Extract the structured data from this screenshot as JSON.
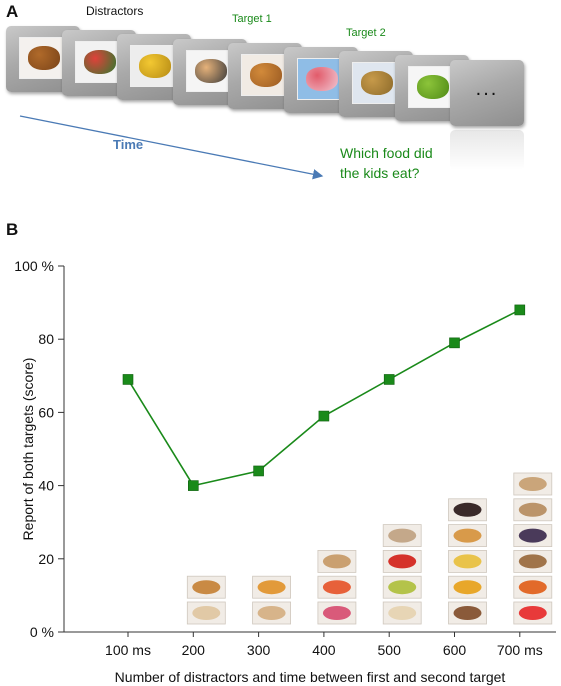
{
  "panel_a": {
    "label": "A",
    "distractors_label": "Distractors",
    "target1_label": "Target 1",
    "target2_label": "Target 2",
    "time_label": "Time",
    "question_line1": "Which food did",
    "question_line2": "the kids eat?",
    "end_frame_text": "...",
    "frames": [
      {
        "icon": "croissant-icon",
        "colors": [
          "#f4f1ee",
          "#b06a2a",
          "#7a4318"
        ]
      },
      {
        "icon": "watermelon-icon",
        "colors": [
          "#f2f2f2",
          "#e0413a",
          "#2f7a2f"
        ]
      },
      {
        "icon": "banana-icon",
        "colors": [
          "#ededed",
          "#f3c832",
          "#b58a14"
        ]
      },
      {
        "icon": "kid-eating-icon",
        "colors": [
          "#f5f5f5",
          "#e6b27a",
          "#3a3a3a"
        ]
      },
      {
        "icon": "bread-rolls-icon",
        "colors": [
          "#f1ebe4",
          "#d28a3a",
          "#9a5a22"
        ]
      },
      {
        "icon": "kids-watermelon-icon",
        "colors": [
          "#8fbde6",
          "#e25b6a",
          "#f1c7d3"
        ]
      },
      {
        "icon": "potatoes-icon",
        "colors": [
          "#dfe6ef",
          "#c79a4a",
          "#8c6a2a"
        ]
      },
      {
        "icon": "green-apples-icon",
        "colors": [
          "#f6f6f6",
          "#8cc43a",
          "#4f8a16"
        ]
      },
      {
        "icon": "ellipsis-icon",
        "colors": [
          "#a0a0a0",
          "#a0a0a0",
          "#a0a0a0"
        ]
      }
    ]
  },
  "panel_b": {
    "label": "B"
  },
  "colors": {
    "series": "#1a8a1a",
    "arrow": "#4a7ab5",
    "axis": "#333333"
  },
  "chart_data": {
    "type": "line",
    "title": "",
    "xlabel": "Number of distractors and time between first and second target",
    "ylabel": "Report of both targets (score)",
    "x": [
      "100 ms",
      "200",
      "300",
      "400",
      "500",
      "600",
      "700 ms"
    ],
    "y_ticks": [
      "0 %",
      "20",
      "40",
      "60",
      "80",
      "100 %"
    ],
    "y_tick_values": [
      0,
      20,
      40,
      60,
      80,
      100
    ],
    "ylim": [
      0,
      100
    ],
    "grid": false,
    "series": [
      {
        "values": [
          69,
          40,
          44,
          59,
          69,
          79,
          88
        ]
      }
    ],
    "food_thumbnail_counts": [
      0,
      2,
      2,
      3,
      4,
      5,
      6
    ],
    "food_thumbnail_colors": [
      [],
      [
        "#e1c9a6",
        "#c98a44"
      ],
      [
        "#d7b48a",
        "#e29a3a"
      ],
      [
        "#d95a7a",
        "#e7613a",
        "#caa070"
      ],
      [
        "#e7d5b5",
        "#b4c34a",
        "#d5322a",
        "#c4a88a"
      ],
      [
        "#8a5a3a",
        "#e8a72a",
        "#e9c34a",
        "#d89a4a",
        "#3a2a2a"
      ],
      [
        "#e83a3a",
        "#e26a2a",
        "#a0744a",
        "#4a3a5a",
        "#bb946a",
        "#caa57a"
      ]
    ]
  }
}
